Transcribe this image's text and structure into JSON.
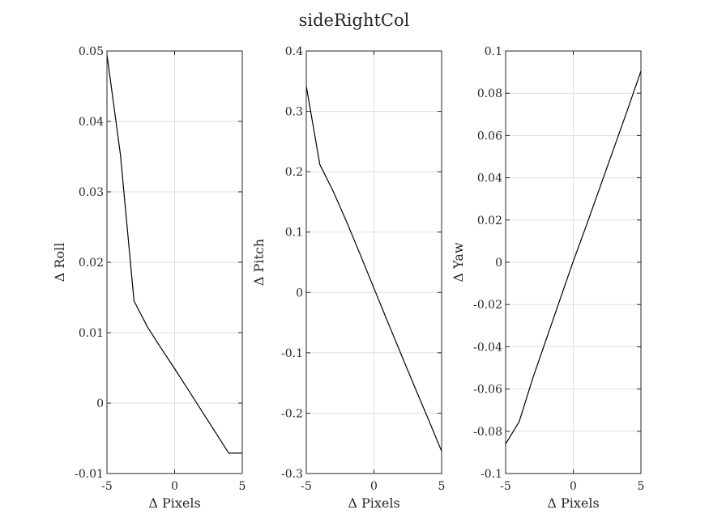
{
  "figure": {
    "title": "sideRightCol"
  },
  "chart_data": [
    {
      "type": "line",
      "xlabel": "Δ Pixels",
      "ylabel": "Δ Roll",
      "xlim": [
        -5,
        5
      ],
      "ylim": [
        -0.01,
        0.05
      ],
      "grid": true,
      "xticks": [
        -5,
        0,
        5
      ],
      "xtick_labels": [
        "-5",
        "0",
        "5"
      ],
      "yticks": [
        -0.01,
        0,
        0.01,
        0.02,
        0.03,
        0.04,
        0.05
      ],
      "ytick_labels": [
        "-0.01",
        "0",
        "0.01",
        "0.02",
        "0.03",
        "0.04",
        "0.05"
      ],
      "series": [
        {
          "x": [
            -5,
            -4,
            -3,
            -2,
            -1,
            0,
            1,
            2,
            3,
            4,
            5
          ],
          "y": [
            0.0495,
            0.0352,
            0.0145,
            0.0108,
            0.0078,
            0.0049,
            0.0019,
            -0.0011,
            -0.0041,
            -0.0071,
            -0.0071
          ]
        }
      ],
      "line_color": "#000000"
    },
    {
      "type": "line",
      "xlabel": "Δ Pixels",
      "ylabel": "Δ Pitch",
      "xlim": [
        -5,
        5
      ],
      "ylim": [
        -0.3,
        0.4
      ],
      "grid": true,
      "xticks": [
        -5,
        0,
        5
      ],
      "xtick_labels": [
        "-5",
        "0",
        "5"
      ],
      "yticks": [
        -0.3,
        -0.2,
        -0.1,
        0,
        0.1,
        0.2,
        0.3,
        0.4
      ],
      "ytick_labels": [
        "-0.3",
        "-0.2",
        "-0.1",
        "0",
        "0.1",
        "0.2",
        "0.3",
        "0.4"
      ],
      "series": [
        {
          "x": [
            -5,
            -4,
            -3,
            -2,
            -1,
            0,
            1,
            2,
            3,
            4,
            5
          ],
          "y": [
            0.342,
            0.212,
            0.167,
            0.116,
            0.062,
            0.007,
            -0.048,
            -0.102,
            -0.156,
            -0.209,
            -0.263
          ]
        }
      ],
      "line_color": "#000000"
    },
    {
      "type": "line",
      "xlabel": "Δ Pixels",
      "ylabel": "Δ Yaw",
      "xlim": [
        -5,
        5
      ],
      "ylim": [
        -0.1,
        0.1
      ],
      "grid": true,
      "xticks": [
        -5,
        0,
        5
      ],
      "xtick_labels": [
        "-5",
        "0",
        "5"
      ],
      "yticks": [
        -0.1,
        -0.08,
        -0.06,
        -0.04,
        -0.02,
        0,
        0.02,
        0.04,
        0.06,
        0.08,
        0.1
      ],
      "ytick_labels": [
        "-0.1",
        "-0.08",
        "-0.06",
        "-0.04",
        "-0.02",
        "0",
        "0.02",
        "0.04",
        "0.06",
        "0.08",
        "0.1"
      ],
      "series": [
        {
          "x": [
            -5,
            -4,
            -3,
            -2,
            -1,
            0,
            1,
            2,
            3,
            4,
            5
          ],
          "y": [
            -0.086,
            -0.0755,
            -0.055,
            -0.0365,
            -0.018,
            0.0005,
            0.018,
            0.036,
            0.054,
            0.072,
            0.0905
          ]
        }
      ],
      "line_color": "#000000"
    }
  ]
}
